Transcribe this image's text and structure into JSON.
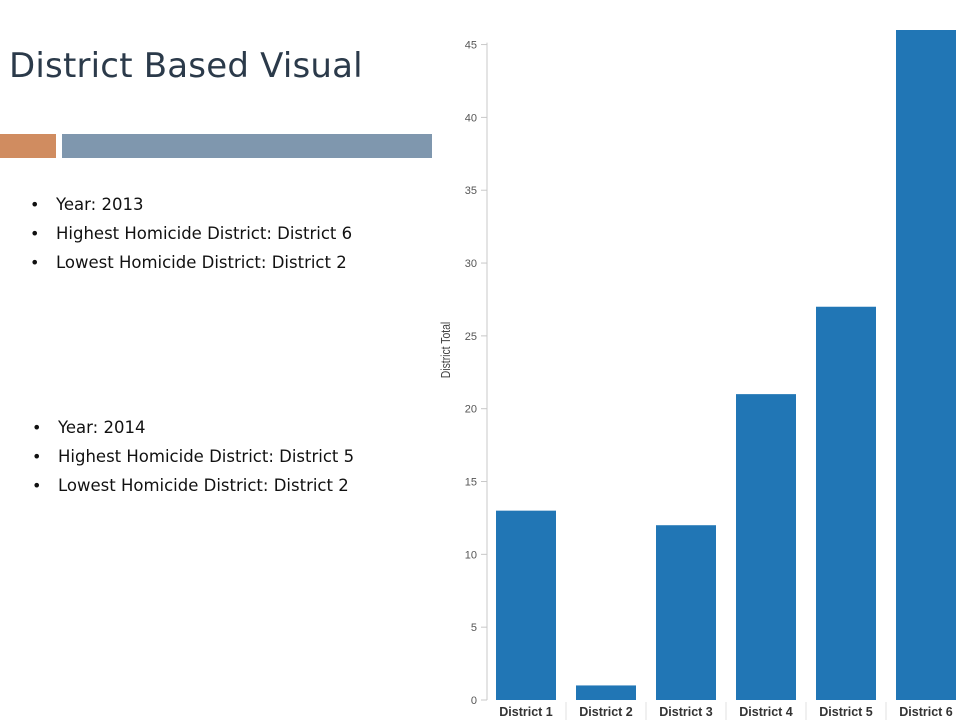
{
  "title": "District Based Visual",
  "colors": {
    "accent_orange": "#d08c60",
    "accent_steel": "#7f97ae",
    "bar": "#2176b5",
    "axis": "#c8c8c8",
    "tick_text": "#555555"
  },
  "summary_2013": [
    "Year: 2013",
    "Highest Homicide District: District 6",
    "Lowest Homicide District: District 2"
  ],
  "summary_2014": [
    "Year: 2014",
    "Highest Homicide District: District 5",
    "Lowest Homicide District: District 2"
  ],
  "chart_data": {
    "type": "bar",
    "ylabel": "District Total",
    "categories": [
      "District 1",
      "District 2",
      "District 3",
      "District 4",
      "District 5",
      "District 6"
    ],
    "values": [
      13,
      1,
      12,
      21,
      27,
      46
    ],
    "ylim": [
      0,
      46
    ],
    "yticks": [
      0,
      5,
      10,
      15,
      20,
      25,
      30,
      35,
      40,
      45
    ],
    "grid": false,
    "legend": "none"
  }
}
